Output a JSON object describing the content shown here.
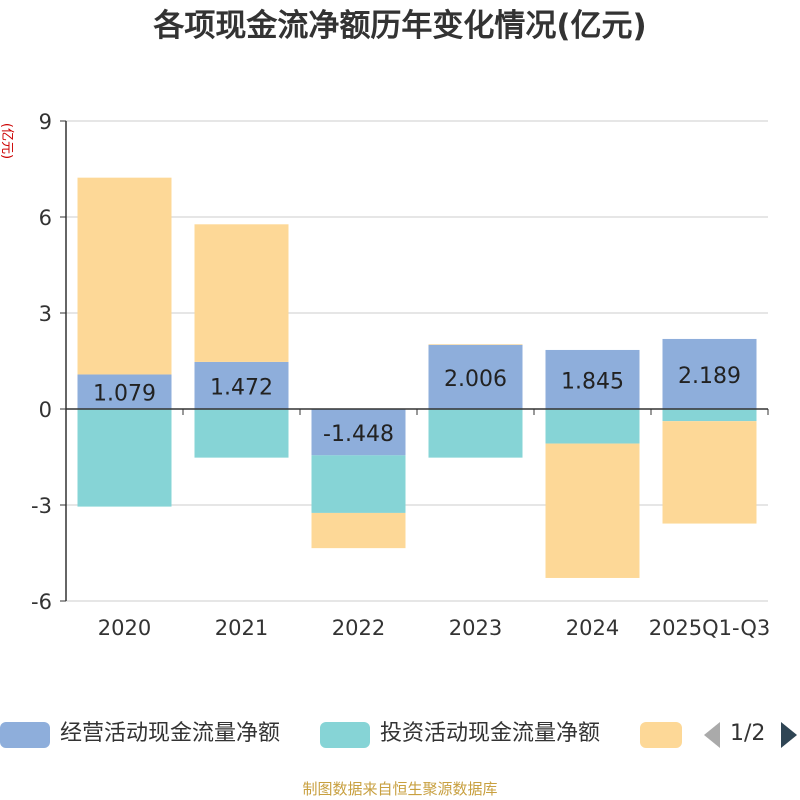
{
  "title": "各项现金流净额历年变化情况(亿元)",
  "y_unit": "(亿元)",
  "source": "制图数据来自恒生聚源数据库",
  "legend_page": "1/2",
  "colors": {
    "operating": "#8EAEDB",
    "investing": "#86D4D6",
    "financing": "#FDD897",
    "axis": "#333333",
    "grid": "#CCCCCC"
  },
  "chart_data": {
    "type": "bar",
    "stacked": true,
    "title": "各项现金流净额历年变化情况(亿元)",
    "ylabel": "(亿元)",
    "ylim": [
      -6,
      9
    ],
    "yticks": [
      -6,
      -3,
      0,
      3,
      6,
      9
    ],
    "categories": [
      "2020",
      "2021",
      "2022",
      "2023",
      "2024",
      "2025Q1-Q3"
    ],
    "series": [
      {
        "name": "经营活动现金流量净额",
        "key": "operating",
        "values": [
          1.079,
          1.472,
          -1.448,
          2.006,
          1.845,
          2.189
        ],
        "labels": [
          "1.079",
          "1.472",
          "-1.448",
          "2.006",
          "1.845",
          "2.189"
        ]
      },
      {
        "name": "投资活动现金流量净额",
        "key": "investing",
        "values": [
          -3.05,
          -1.52,
          -1.8,
          -1.52,
          -1.08,
          -0.38
        ]
      },
      {
        "name": "",
        "key": "financing",
        "values": [
          6.15,
          4.3,
          -1.1,
          0.02,
          -4.2,
          -3.2
        ]
      }
    ],
    "legend_position": "bottom"
  }
}
